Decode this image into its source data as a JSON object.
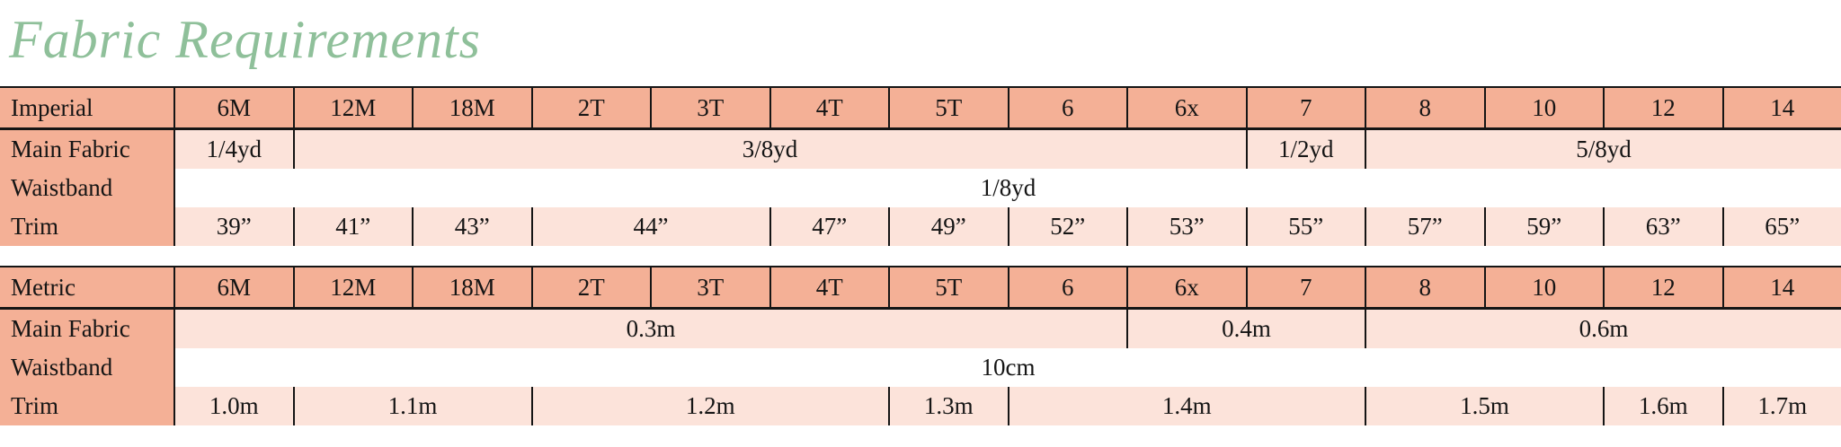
{
  "title": "Fabric Requirements",
  "theme": {
    "title_color": "#8fc09a",
    "header_bg": "#f4b096",
    "cell_bg": "#fce3da",
    "waistband_bg": "#ffffff",
    "border_color": "#151515"
  },
  "tables": [
    {
      "unit_label": "Imperial",
      "sizes": [
        "6M",
        "12M",
        "18M",
        "2T",
        "3T",
        "4T",
        "5T",
        "6",
        "6x",
        "7",
        "8",
        "10",
        "12",
        "14"
      ],
      "rows": [
        {
          "label": "Main Fabric",
          "bg": "pink",
          "cells": [
            {
              "value": "1/4yd",
              "span": 1
            },
            {
              "value": "3/8yd",
              "span": 8
            },
            {
              "value": "1/2yd",
              "span": 1
            },
            {
              "value": "5/8yd",
              "span": 4
            }
          ]
        },
        {
          "label": "Waistband",
          "bg": "white",
          "cells": [
            {
              "value": "1/8yd",
              "span": 14
            }
          ]
        },
        {
          "label": "Trim",
          "bg": "pink",
          "cells": [
            {
              "value": "39”",
              "span": 1
            },
            {
              "value": "41”",
              "span": 1
            },
            {
              "value": "43”",
              "span": 1
            },
            {
              "value": "44”",
              "span": 2
            },
            {
              "value": "47”",
              "span": 1
            },
            {
              "value": "49”",
              "span": 1
            },
            {
              "value": "52”",
              "span": 1
            },
            {
              "value": "53”",
              "span": 1
            },
            {
              "value": "55”",
              "span": 1
            },
            {
              "value": "57”",
              "span": 1
            },
            {
              "value": "59”",
              "span": 1
            },
            {
              "value": "63”",
              "span": 1
            },
            {
              "value": "65”",
              "span": 1
            }
          ]
        }
      ]
    },
    {
      "unit_label": "Metric",
      "sizes": [
        "6M",
        "12M",
        "18M",
        "2T",
        "3T",
        "4T",
        "5T",
        "6",
        "6x",
        "7",
        "8",
        "10",
        "12",
        "14"
      ],
      "rows": [
        {
          "label": "Main Fabric",
          "bg": "pink",
          "cells": [
            {
              "value": "0.3m",
              "span": 8
            },
            {
              "value": "0.4m",
              "span": 2
            },
            {
              "value": "0.6m",
              "span": 4
            }
          ]
        },
        {
          "label": "Waistband",
          "bg": "white",
          "cells": [
            {
              "value": "10cm",
              "span": 14
            }
          ]
        },
        {
          "label": "Trim",
          "bg": "pink",
          "cells": [
            {
              "value": "1.0m",
              "span": 1
            },
            {
              "value": "1.1m",
              "span": 2
            },
            {
              "value": "1.2m",
              "span": 3
            },
            {
              "value": "1.3m",
              "span": 1
            },
            {
              "value": "1.4m",
              "span": 3
            },
            {
              "value": "1.5m",
              "span": 2
            },
            {
              "value": "1.6m",
              "span": 1
            },
            {
              "value": "1.7m",
              "span": 1
            }
          ]
        }
      ]
    }
  ]
}
